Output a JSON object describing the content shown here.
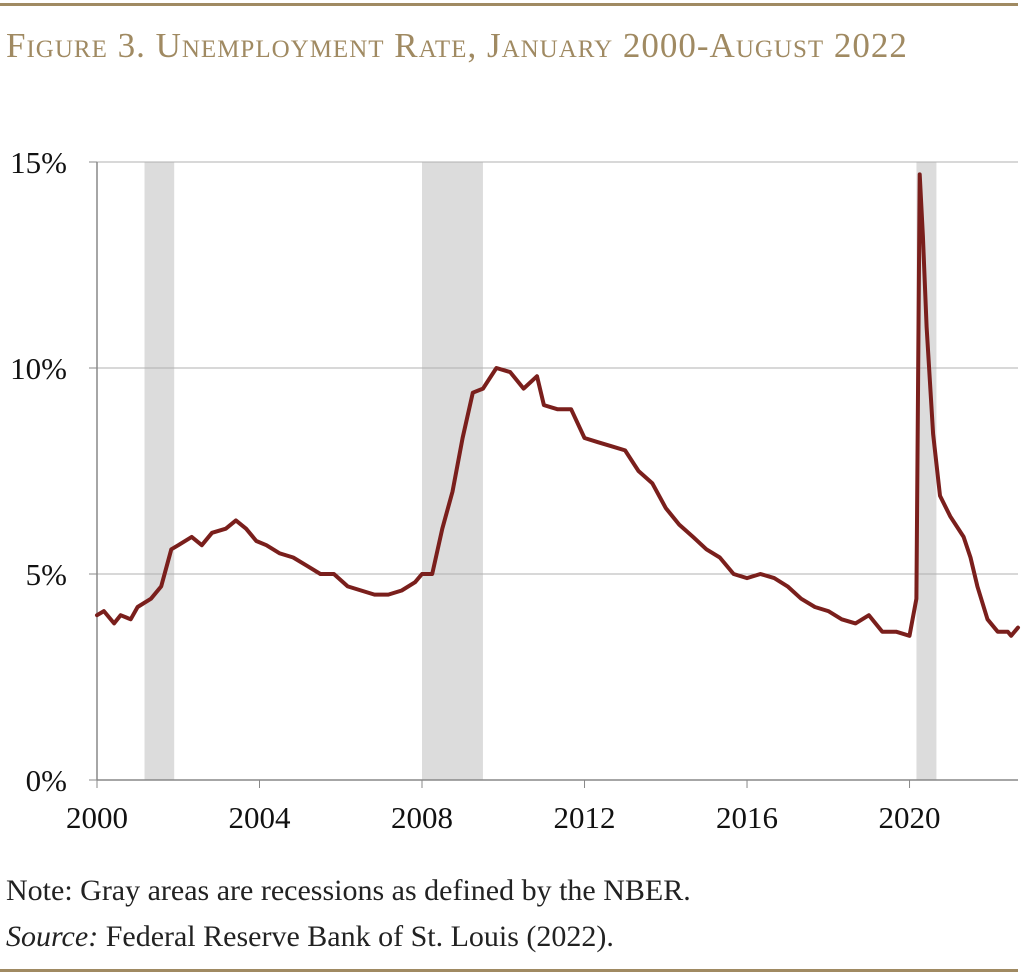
{
  "figure": {
    "title": "Figure 3. Unemployment Rate, January 2000-August 2022",
    "note": "Note: Gray areas are recessions as defined by the NBER.",
    "source_label": "Source:",
    "source_text": " Federal Reserve Bank of St. Louis (2022)."
  },
  "colors": {
    "line": "#7a1f1c",
    "recession": "#dcdcdc",
    "grid": "#b0b0b0",
    "axis": "#888888",
    "title": "#a08a62"
  },
  "chart_data": {
    "type": "line",
    "title": "Figure 3. Unemployment Rate, January 2000-August 2022",
    "xlabel": "",
    "ylabel": "",
    "xlim": [
      2000.0,
      2022.67
    ],
    "ylim": [
      0,
      15
    ],
    "y_ticks": [
      0,
      5,
      10,
      15
    ],
    "y_tick_labels": [
      "0%",
      "5%",
      "10%",
      "15%"
    ],
    "x_ticks": [
      2000,
      2004,
      2008,
      2012,
      2016,
      2020
    ],
    "x_tick_labels": [
      "2000",
      "2004",
      "2008",
      "2012",
      "2016",
      "2020"
    ],
    "grid": "horizontal",
    "recessions": [
      [
        2001.17,
        2001.9
      ],
      [
        2008.0,
        2009.5
      ],
      [
        2020.17,
        2020.33
      ]
    ],
    "series": [
      {
        "points": [
          [
            2000.0,
            4.0
          ],
          [
            2000.17,
            4.1
          ],
          [
            2000.42,
            3.8
          ],
          [
            2000.58,
            4.0
          ],
          [
            2000.83,
            3.9
          ],
          [
            2001.0,
            4.2
          ],
          [
            2001.33,
            4.4
          ],
          [
            2001.58,
            4.7
          ],
          [
            2001.83,
            5.6
          ],
          [
            2002.0,
            5.7
          ],
          [
            2002.33,
            5.9
          ],
          [
            2002.58,
            5.7
          ],
          [
            2002.83,
            6.0
          ],
          [
            2003.17,
            6.1
          ],
          [
            2003.42,
            6.3
          ],
          [
            2003.67,
            6.1
          ],
          [
            2003.92,
            5.8
          ],
          [
            2004.17,
            5.7
          ],
          [
            2004.5,
            5.5
          ],
          [
            2004.83,
            5.4
          ],
          [
            2005.17,
            5.2
          ],
          [
            2005.5,
            5.0
          ],
          [
            2005.83,
            5.0
          ],
          [
            2006.17,
            4.7
          ],
          [
            2006.5,
            4.6
          ],
          [
            2006.83,
            4.5
          ],
          [
            2007.17,
            4.5
          ],
          [
            2007.5,
            4.6
          ],
          [
            2007.83,
            4.8
          ],
          [
            2008.0,
            5.0
          ],
          [
            2008.25,
            5.0
          ],
          [
            2008.5,
            6.1
          ],
          [
            2008.75,
            7.0
          ],
          [
            2009.0,
            8.3
          ],
          [
            2009.25,
            9.4
          ],
          [
            2009.5,
            9.5
          ],
          [
            2009.83,
            10.0
          ],
          [
            2010.17,
            9.9
          ],
          [
            2010.5,
            9.5
          ],
          [
            2010.83,
            9.8
          ],
          [
            2011.0,
            9.1
          ],
          [
            2011.33,
            9.0
          ],
          [
            2011.67,
            9.0
          ],
          [
            2012.0,
            8.3
          ],
          [
            2012.33,
            8.2
          ],
          [
            2012.67,
            8.1
          ],
          [
            2013.0,
            8.0
          ],
          [
            2013.33,
            7.5
          ],
          [
            2013.67,
            7.2
          ],
          [
            2014.0,
            6.6
          ],
          [
            2014.33,
            6.2
          ],
          [
            2014.67,
            5.9
          ],
          [
            2015.0,
            5.6
          ],
          [
            2015.33,
            5.4
          ],
          [
            2015.67,
            5.0
          ],
          [
            2016.0,
            4.9
          ],
          [
            2016.33,
            5.0
          ],
          [
            2016.67,
            4.9
          ],
          [
            2017.0,
            4.7
          ],
          [
            2017.33,
            4.4
          ],
          [
            2017.67,
            4.2
          ],
          [
            2018.0,
            4.1
          ],
          [
            2018.33,
            3.9
          ],
          [
            2018.67,
            3.8
          ],
          [
            2019.0,
            4.0
          ],
          [
            2019.33,
            3.6
          ],
          [
            2019.67,
            3.6
          ],
          [
            2020.0,
            3.5
          ],
          [
            2020.17,
            4.4
          ],
          [
            2020.25,
            14.7
          ],
          [
            2020.33,
            13.2
          ],
          [
            2020.42,
            11.0
          ],
          [
            2020.58,
            8.4
          ],
          [
            2020.75,
            6.9
          ],
          [
            2021.0,
            6.4
          ],
          [
            2021.33,
            5.9
          ],
          [
            2021.5,
            5.4
          ],
          [
            2021.67,
            4.7
          ],
          [
            2021.92,
            3.9
          ],
          [
            2022.17,
            3.6
          ],
          [
            2022.42,
            3.6
          ],
          [
            2022.5,
            3.5
          ],
          [
            2022.67,
            3.7
          ]
        ]
      }
    ]
  }
}
